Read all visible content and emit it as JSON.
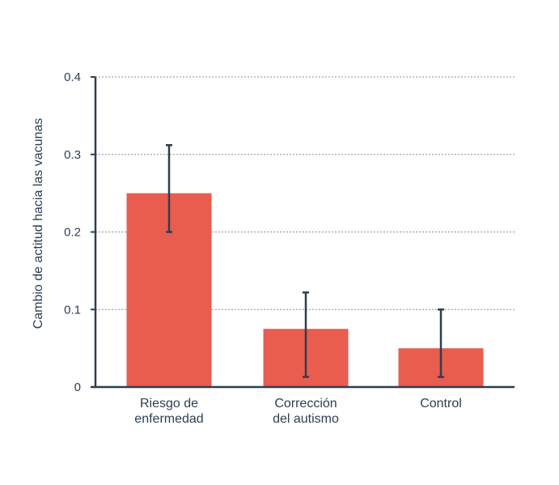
{
  "colors": {
    "bar": "#e95d4e",
    "axis": "#2d3e50",
    "grid": "#8a8f96",
    "error_bar": "#2d3e50"
  },
  "chart_data": {
    "type": "bar",
    "title": "",
    "xlabel": "",
    "ylabel": "Cambio de actitud hacia las vacunas",
    "ylim": [
      0,
      0.4
    ],
    "yticks": [
      0,
      0.1,
      0.2,
      0.3,
      0.4
    ],
    "ytick_labels": [
      "0",
      "0.1",
      "0.2",
      "0.3",
      "0.4"
    ],
    "grid": "horizontal dashed",
    "categories": [
      [
        "Riesgo de",
        "enfermedad"
      ],
      [
        "Corrección",
        "del autismo"
      ],
      [
        "Control"
      ]
    ],
    "values": [
      0.25,
      0.075,
      0.05
    ],
    "error_low": [
      0.2,
      0.013,
      0.013
    ],
    "error_high": [
      0.312,
      0.122,
      0.1
    ]
  }
}
